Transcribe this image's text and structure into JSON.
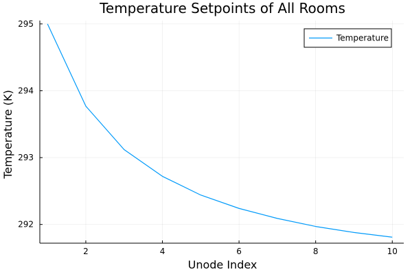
{
  "chart_data": {
    "type": "line",
    "title": "Temperature Setpoints of All Rooms",
    "xlabel": "Unode Index",
    "ylabel": "Temperature (K)",
    "xlim": [
      0.8,
      10.3
    ],
    "ylim": [
      291.72,
      295.05
    ],
    "xticks": [
      2,
      4,
      6,
      8,
      10
    ],
    "yticks": [
      292,
      293,
      294,
      295
    ],
    "grid": true,
    "legend_position": "top-right",
    "series": [
      {
        "name": "Temperature",
        "color": "#009AFA",
        "x": [
          1,
          2,
          3,
          4,
          5,
          6,
          7,
          8,
          9,
          10
        ],
        "y": [
          295.0,
          293.77,
          293.12,
          292.72,
          292.44,
          292.24,
          292.09,
          291.97,
          291.88,
          291.81
        ]
      }
    ]
  }
}
